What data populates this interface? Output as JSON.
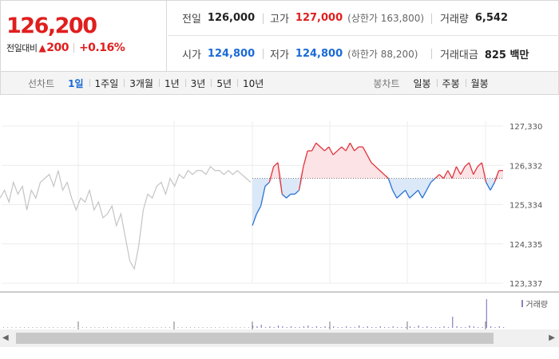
{
  "quote": {
    "price": "126,200",
    "change_label": "전일대비",
    "change_arrow_icon": "up-triangle-icon",
    "change_value": "200",
    "change_rate": "+0.16%",
    "colors": {
      "up": "#e01e1e",
      "down": "#1a6ad6"
    }
  },
  "stats": {
    "prev_close": {
      "label": "전일",
      "value": "126,000"
    },
    "high": {
      "label": "고가",
      "value": "127,000",
      "sub": "(상한가 163,800)"
    },
    "volume": {
      "label": "거래량",
      "value": "6,542"
    },
    "open": {
      "label": "시가",
      "value": "124,800"
    },
    "low": {
      "label": "저가",
      "value": "124,800",
      "sub": "(하한가 88,200)"
    },
    "amount": {
      "label": "거래대금",
      "value": "825 백만"
    }
  },
  "toolbar": {
    "line_chart_label": "선차트",
    "line_periods": [
      "1일",
      "1주일",
      "3개월",
      "1년",
      "3년",
      "5년",
      "10년"
    ],
    "active_period": "1일",
    "candle_chart_label": "봉차트",
    "candle_periods": [
      "일봉",
      "주봉",
      "월봉"
    ]
  },
  "chart_data": {
    "type": "line",
    "title": "",
    "xlabel": "",
    "ylabel": "",
    "ylim": [
      123337,
      127330
    ],
    "yticks": [
      "127,330",
      "126,332",
      "125,334",
      "124,335",
      "123,337"
    ],
    "reference_price": 126000,
    "previous_day": [
      125500,
      125700,
      125400,
      125900,
      125600,
      125800,
      125200,
      125700,
      125500,
      125900,
      126000,
      126100,
      125800,
      126200,
      125700,
      125900,
      125500,
      125200,
      125500,
      125400,
      125700,
      125200,
      125400,
      125000,
      125100,
      125300,
      124800,
      125100,
      124500,
      123900,
      123700,
      124300,
      125200,
      125600,
      125500,
      125800,
      125900,
      125600,
      126000,
      125800,
      126100,
      126000,
      126200,
      126100,
      126200,
      126200,
      126100,
      126300,
      126200,
      126200,
      126100,
      126200,
      126100,
      126200,
      126100,
      126000,
      125900
    ],
    "today": [
      124800,
      125100,
      125300,
      125800,
      125900,
      126300,
      126400,
      125600,
      125500,
      125600,
      125600,
      125700,
      126300,
      126700,
      126700,
      126900,
      126800,
      126700,
      126800,
      126600,
      126700,
      126800,
      126700,
      126900,
      126700,
      126800,
      126800,
      126600,
      126400,
      126300,
      126200,
      126100,
      126000,
      125700,
      125500,
      125600,
      125700,
      125500,
      125600,
      125700,
      125500,
      125700,
      125900,
      126000,
      126100,
      126000,
      126200,
      126000,
      126300,
      126100,
      126300,
      126400,
      126100,
      126300,
      126400,
      125900,
      125700,
      125900,
      126200,
      126200
    ],
    "volume": [
      3,
      2,
      4,
      1,
      2,
      1,
      3,
      2,
      1,
      2,
      1,
      1,
      2,
      3,
      1,
      2,
      1,
      2,
      1,
      2,
      1,
      1,
      2,
      1,
      1,
      3,
      1,
      2,
      1,
      1,
      2,
      1,
      1,
      2,
      1,
      1,
      1,
      2,
      1,
      3,
      1,
      2,
      1,
      1,
      1,
      2,
      1,
      14,
      2,
      1,
      1,
      3,
      2,
      1,
      1,
      36,
      2,
      1,
      2,
      1
    ],
    "volume_legend": "거래량",
    "colors": {
      "up_line": "#e0333c",
      "down_line": "#2a72d4",
      "prev_line": "#c4c4c4",
      "volume": "#8a7fc0"
    }
  }
}
